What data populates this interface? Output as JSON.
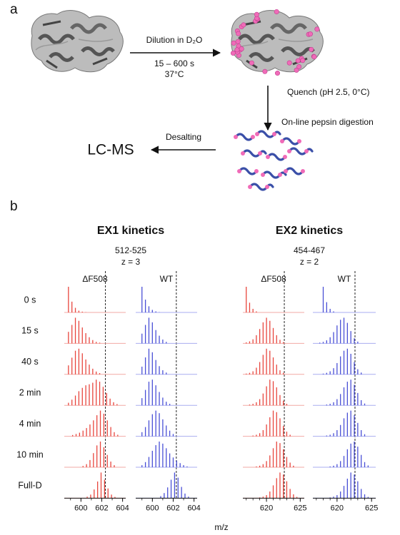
{
  "labels": {
    "a": "a",
    "b": "b"
  },
  "scheme": {
    "dilution": "Dilution in D₂O",
    "time": "15 – 600 s",
    "temp": "37°C",
    "quench": "Quench (pH 2.5, 0°C)",
    "digestion": "On-line pepsin digestion",
    "desalting": "Desalting",
    "lcms": "LC-MS"
  },
  "times": [
    "0 s",
    "15 s",
    "40 s",
    "2 min",
    "4 min",
    "10 min",
    "Full-D"
  ],
  "xlabel": "m/z",
  "kinetics": [
    {
      "title": "EX1 kinetics",
      "peptide": "512-525",
      "charge": "z = 3",
      "spacing": 0.3333,
      "xlim": [
        598.4,
        604.3
      ],
      "xticks": [
        600,
        602,
        604
      ],
      "panels": [
        {
          "name": "ΔF508",
          "color": "#e8463e",
          "baseline": "#f2a9a4",
          "reference": 602.35,
          "spectra": [
            {
              "start": 598.8,
              "peaks": [
                100,
                42,
                18,
                7,
                3,
                1
              ]
            },
            {
              "start": 598.8,
              "peaks": [
                45,
                72,
                100,
                88,
                62,
                40,
                24,
                13,
                6,
                3
              ]
            },
            {
              "start": 598.8,
              "peaks": [
                35,
                65,
                92,
                100,
                82,
                58,
                38,
                22,
                11,
                5
              ]
            },
            {
              "start": 598.8,
              "peaks": [
                10,
                22,
                38,
                55,
                68,
                78,
                82,
                88,
                100,
                92,
                72,
                48,
                26,
                12,
                5
              ]
            },
            {
              "start": 599.2,
              "peaks": [
                5,
                9,
                14,
                22,
                32,
                46,
                62,
                82,
                100,
                88,
                62,
                36,
                16,
                6
              ]
            },
            {
              "start": 600.2,
              "peaks": [
                5,
                12,
                28,
                55,
                85,
                100,
                78,
                48,
                22,
                8
              ]
            },
            {
              "start": 600.6,
              "peaks": [
                6,
                14,
                34,
                65,
                100,
                72,
                38,
                14,
                5
              ]
            }
          ]
        },
        {
          "name": "WT",
          "color": "#4a50d6",
          "baseline": "#a9adf0",
          "reference": 602.3,
          "spectra": [
            {
              "start": 599.0,
              "peaks": [
                100,
                50,
                24,
                10,
                4,
                1
              ]
            },
            {
              "start": 599.0,
              "peaks": [
                38,
                72,
                100,
                82,
                52,
                30,
                15,
                6
              ]
            },
            {
              "start": 599.0,
              "peaks": [
                30,
                66,
                100,
                86,
                56,
                32,
                16,
                7
              ]
            },
            {
              "start": 599.0,
              "peaks": [
                28,
                60,
                92,
                100,
                78,
                52,
                30,
                14,
                6
              ]
            },
            {
              "start": 599.0,
              "peaks": [
                16,
                36,
                62,
                86,
                100,
                90,
                66,
                42,
                22,
                9
              ]
            },
            {
              "start": 599.0,
              "peaks": [
                8,
                20,
                40,
                64,
                86,
                100,
                92,
                74,
                54,
                38,
                26,
                16,
                8,
                3
              ]
            },
            {
              "start": 600.8,
              "peaks": [
                8,
                20,
                42,
                72,
                100,
                80,
                44,
                18,
                6
              ]
            }
          ]
        }
      ]
    },
    {
      "title": "EX2 kinetics",
      "peptide": "454-467",
      "charge": "z = 2",
      "spacing": 0.5,
      "xlim": [
        616.5,
        625.6
      ],
      "xticks": [
        620,
        625
      ],
      "panels": [
        {
          "name": "ΔF508",
          "color": "#e8463e",
          "baseline": "#f2a9a4",
          "reference": 622.64,
          "spectra": [
            {
              "start": 617.0,
              "peaks": [
                100,
                38,
                14,
                4
              ]
            },
            {
              "start": 617.0,
              "peaks": [
                4,
                8,
                16,
                32,
                56,
                82,
                100,
                88,
                60,
                32,
                14,
                5
              ]
            },
            {
              "start": 617.0,
              "peaks": [
                3,
                6,
                12,
                26,
                48,
                76,
                100,
                92,
                66,
                38,
                16,
                6
              ]
            },
            {
              "start": 617.5,
              "peaks": [
                3,
                6,
                12,
                24,
                46,
                74,
                100,
                94,
                70,
                40,
                18,
                6
              ]
            },
            {
              "start": 618.0,
              "peaks": [
                3,
                6,
                12,
                24,
                46,
                74,
                100,
                94,
                70,
                40,
                18,
                6
              ]
            },
            {
              "start": 618.5,
              "peaks": [
                3,
                6,
                12,
                24,
                46,
                74,
                100,
                94,
                70,
                40,
                18,
                6
              ]
            },
            {
              "start": 619.0,
              "peaks": [
                3,
                6,
                12,
                26,
                50,
                78,
                100,
                92,
                66,
                36,
                15,
                5
              ]
            }
          ]
        },
        {
          "name": "WT",
          "color": "#4a50d6",
          "baseline": "#a9adf0",
          "reference": 622.6,
          "spectra": [
            {
              "start": 618.0,
              "peaks": [
                100,
                40,
                14,
                4
              ]
            },
            {
              "start": 617.5,
              "peaks": [
                3,
                6,
                12,
                24,
                44,
                70,
                92,
                100,
                80,
                48,
                20,
                7
              ]
            },
            {
              "start": 618.0,
              "peaks": [
                3,
                6,
                12,
                24,
                44,
                70,
                92,
                100,
                80,
                48,
                20,
                7
              ]
            },
            {
              "start": 618.5,
              "peaks": [
                3,
                6,
                12,
                24,
                44,
                70,
                92,
                100,
                80,
                48,
                20,
                7
              ]
            },
            {
              "start": 618.5,
              "peaks": [
                3,
                6,
                12,
                24,
                44,
                70,
                92,
                100,
                82,
                52,
                24,
                8
              ]
            },
            {
              "start": 619.0,
              "peaks": [
                3,
                6,
                12,
                24,
                44,
                70,
                92,
                100,
                80,
                48,
                20,
                7
              ]
            },
            {
              "start": 619.0,
              "peaks": [
                3,
                6,
                12,
                26,
                48,
                76,
                100,
                92,
                66,
                36,
                15,
                5
              ]
            }
          ]
        }
      ]
    }
  ]
}
